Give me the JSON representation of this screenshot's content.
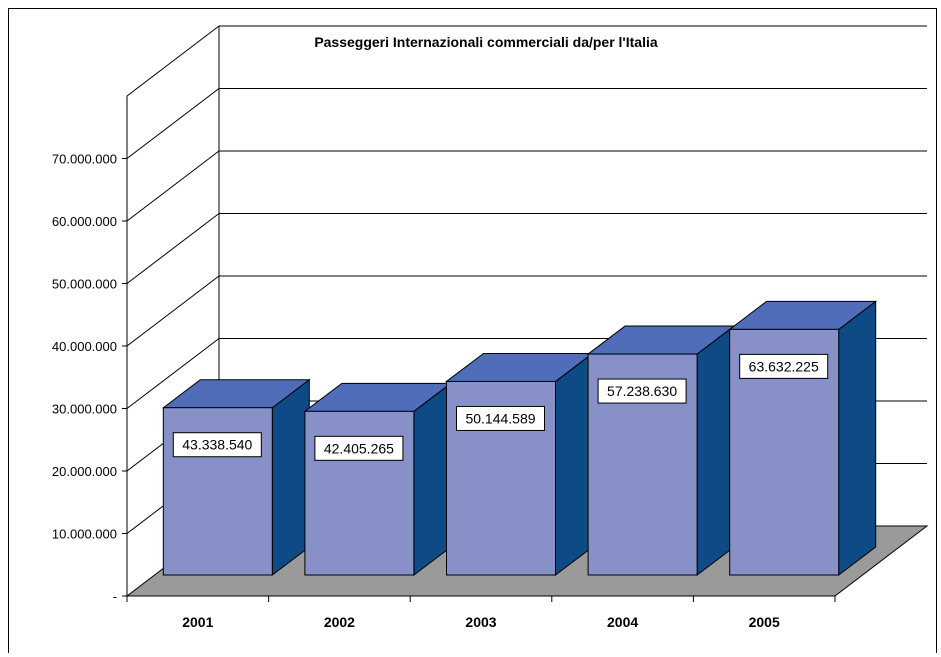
{
  "chart_data": {
    "type": "bar",
    "title": "Passeggeri Internazionali commerciali da/per l'Italia",
    "categories": [
      "2001",
      "2002",
      "2003",
      "2004",
      "2005"
    ],
    "values": [
      43338540,
      42405265,
      50144589,
      57238630,
      63632225
    ],
    "data_labels": [
      "43.338.540",
      "42.405.265",
      "50.144.589",
      "57.238.630",
      "63.632.225"
    ],
    "y_ticks": [
      0,
      10000000,
      20000000,
      30000000,
      40000000,
      50000000,
      60000000,
      70000000
    ],
    "y_tick_labels": [
      "-",
      "10.000.000",
      "20.000.000",
      "30.000.000",
      "40.000.000",
      "50.000.000",
      "60.000.000",
      "70.000.000"
    ],
    "ylim": [
      0,
      70000000
    ],
    "grid": true,
    "legend": "none",
    "colors": {
      "front": "#8890C8",
      "side": "#0E4A86",
      "top": "#4F6DB8",
      "floor": "#9A9A9A"
    }
  }
}
